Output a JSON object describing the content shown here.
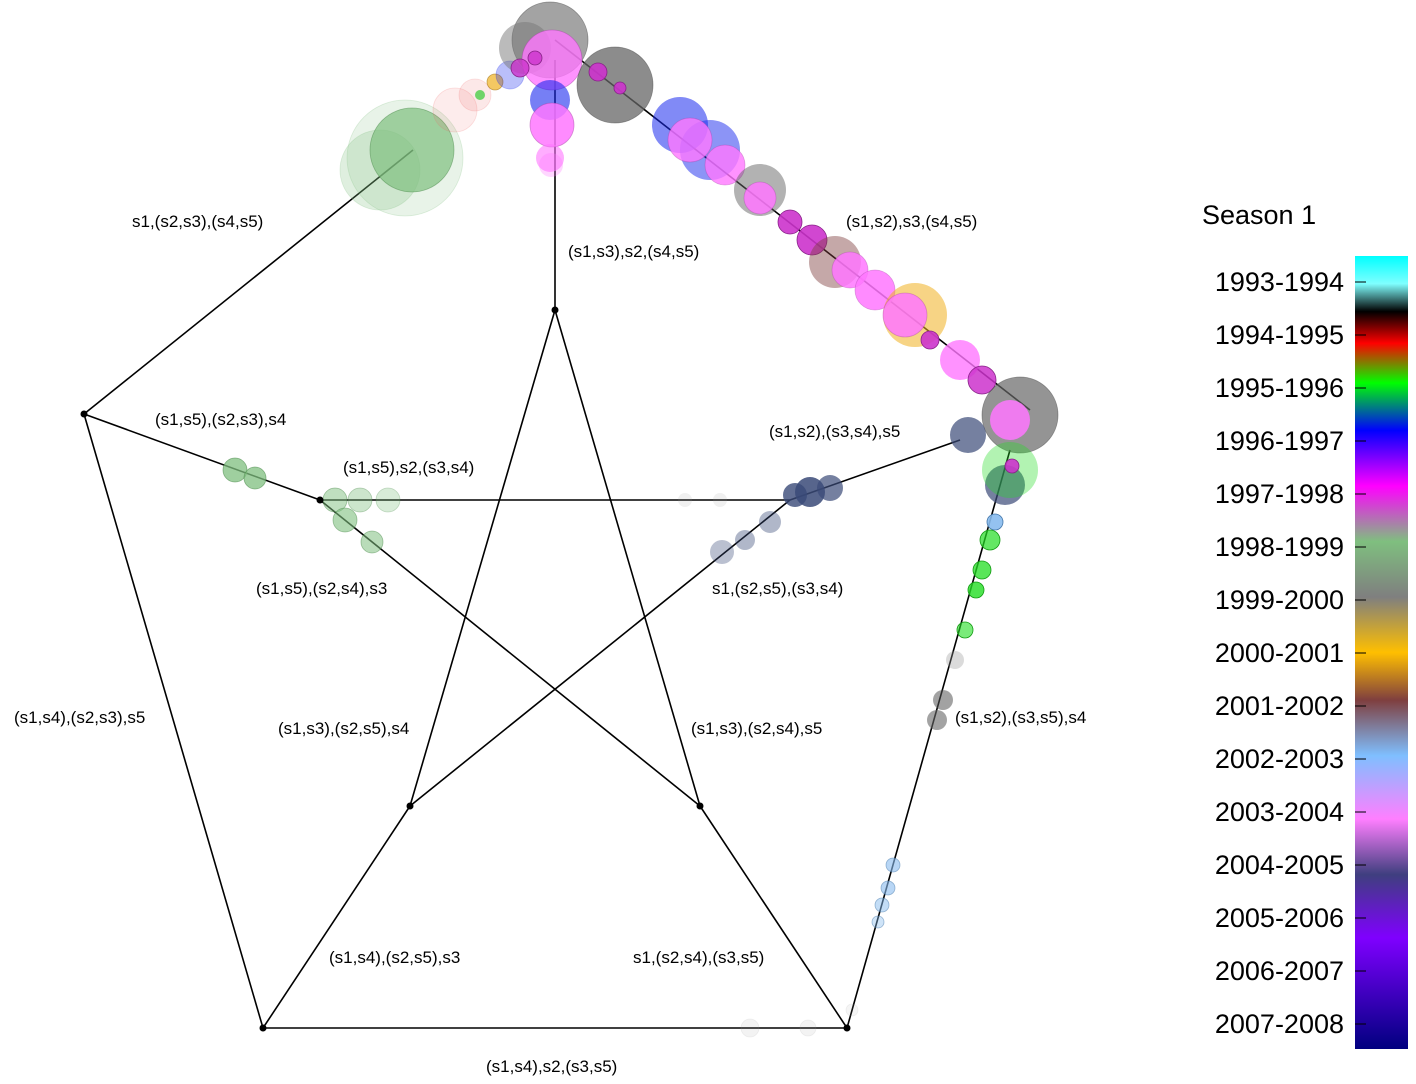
{
  "edge_labels": {
    "top_left": "s1,(s2,s3),(s4,s5)",
    "top_mid": "(s1,s3),s2,(s4,s5)",
    "top_right": "(s1,s2),s3,(s4,s5)",
    "left_upper": "(s1,s5),(s2,s3),s4",
    "inner_upper": "(s1,s5),s2,(s3,s4)",
    "right_upper": "(s1,s2),(s3,s4),s5",
    "left_inner": "(s1,s5),(s2,s4),s3",
    "right_inner": "s1,(s2,s5),(s3,s4)",
    "left_outer": "(s1,s4),(s2,s3),s5",
    "star_left": "(s1,s3),(s2,s5),s4",
    "star_right": "(s1,s3),(s2,s4),s5",
    "right_outer": "(s1,s2),(s3,s5),s4",
    "bottom_left": "(s1,s4),(s2,s5),s3",
    "bottom_right": "s1,(s2,s4),(s3,s5)",
    "bottom": "(s1,s4),s2,(s3,s5)"
  },
  "legend": {
    "title": "Season 1",
    "seasons": [
      "1993-1994",
      "1994-1995",
      "1995-1996",
      "1996-1997",
      "1997-1998",
      "1998-1999",
      "1999-2000",
      "2000-2001",
      "2001-2002",
      "2002-2003",
      "2003-2004",
      "2004-2005",
      "2005-2006",
      "2006-2007",
      "2007-2008"
    ],
    "colors": [
      "#00ffff",
      "#000000",
      "#ff0000",
      "#00ff00",
      "#0000ff",
      "#ff00ff",
      "#7fbf7f",
      "#7f7f7f",
      "#ffbf00",
      "#7f3f3f",
      "#7fbfff",
      "#ff7fff",
      "#3f3f7f",
      "#7f00ff",
      "#00007f"
    ]
  },
  "trajectory_colors": {
    "pink": "#ff77ff",
    "magenta": "#cc33cc",
    "blue": "#1a2aee",
    "gray": "#666666",
    "green": "#7fbf7f",
    "navy": "#3a4a78",
    "bright_green": "#22dd22",
    "light_blue": "#88bbee",
    "orange": "#f0b020",
    "red": "#ee6666"
  }
}
